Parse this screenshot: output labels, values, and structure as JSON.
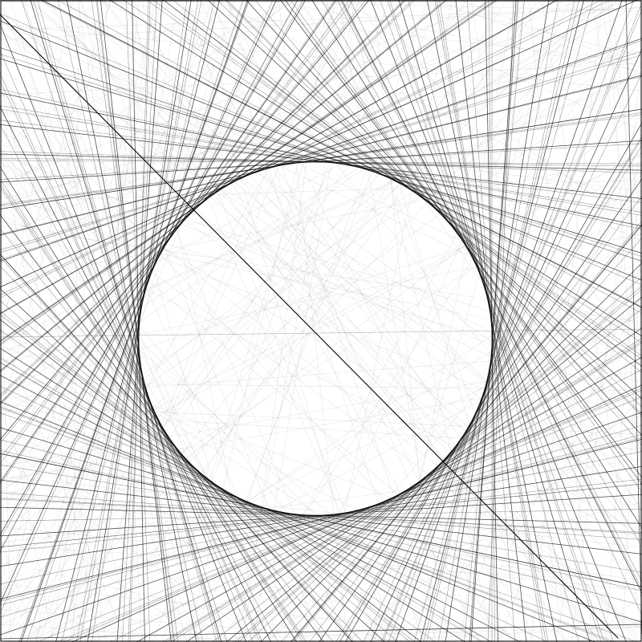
{
  "artwork": {
    "style": "string-art line envelope",
    "background_color": "#ffffff",
    "line_color": "#000000",
    "layers": [
      {
        "name": "light-chords",
        "count": 220,
        "opacity": 0.1
      },
      {
        "name": "medium-tangents",
        "count": 150,
        "opacity": 0.42
      },
      {
        "name": "strong-tangents",
        "count": 70,
        "opacity": 0.72
      }
    ],
    "features": [
      "central-circle-envelope",
      "square-border",
      "long-diagonal-stroke"
    ]
  }
}
